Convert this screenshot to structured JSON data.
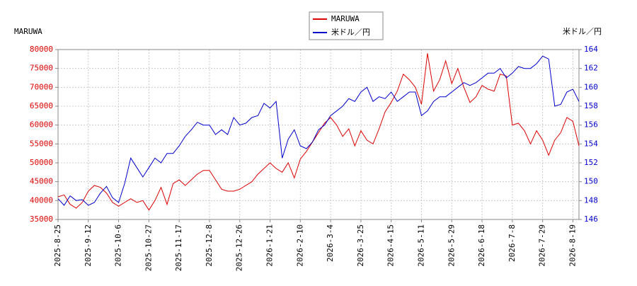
{
  "chart_data": {
    "type": "line",
    "left_label": "MARUWA",
    "right_label": "米ドル／円",
    "x": [
      0,
      3,
      6,
      9,
      12,
      15,
      18,
      21,
      24,
      27,
      30,
      33,
      36,
      39,
      42,
      45,
      48,
      51,
      54,
      57,
      60,
      63,
      66,
      69,
      72,
      75,
      78,
      81,
      84,
      87,
      90,
      93,
      96,
      99,
      102,
      105,
      108,
      111,
      114,
      117,
      120,
      123,
      126,
      129,
      132,
      135,
      138,
      141,
      144,
      147,
      150,
      153,
      156,
      159,
      162,
      165,
      168,
      171,
      174,
      177,
      180,
      183,
      186,
      189,
      192,
      195,
      198,
      201,
      204,
      207,
      210,
      213,
      216,
      219,
      222,
      225,
      228,
      231,
      234,
      237,
      240,
      243,
      246,
      249,
      252,
      255,
      258
    ],
    "series": [
      {
        "name": "MARUWA",
        "color": "#dd0000",
        "axis": "y",
        "values": [
          41000,
          41500,
          39000,
          38000,
          39500,
          42500,
          44000,
          43500,
          42000,
          39500,
          38500,
          39500,
          40500,
          39500,
          40000,
          37500,
          40000,
          43500,
          39000,
          44500,
          45500,
          44000,
          45500,
          47000,
          48000,
          48000,
          45500,
          43000,
          42500,
          42500,
          43000,
          44000,
          45000,
          47000,
          48500,
          50000,
          48500,
          47500,
          50000,
          46000,
          51000,
          53000,
          55500,
          58000,
          60500,
          62000,
          60000,
          57000,
          59000,
          54500,
          58500,
          56000,
          55000,
          59000,
          63500,
          66000,
          69000,
          73500,
          72000,
          70000,
          65500,
          79000,
          69000,
          72000,
          77000,
          71000,
          75000,
          70000,
          66000,
          67500,
          70500,
          69500,
          69000,
          73500,
          73000,
          60000,
          60500,
          58500,
          55000,
          58500,
          56000,
          52000,
          56000,
          58000,
          62000,
          61000,
          54500
        ]
      },
      {
        "name": "米ドル／円",
        "color": "#0000cc",
        "axis": "y2",
        "values": [
          148.2,
          147.5,
          148.5,
          148.0,
          148.1,
          147.5,
          147.8,
          148.8,
          149.5,
          148.3,
          147.8,
          149.8,
          152.5,
          151.5,
          150.5,
          151.5,
          152.5,
          152.0,
          153.0,
          153.0,
          153.8,
          154.8,
          155.5,
          156.3,
          156.0,
          156.0,
          155.0,
          155.5,
          155.0,
          156.8,
          156.0,
          156.2,
          156.8,
          157.0,
          158.3,
          157.8,
          158.5,
          152.5,
          154.5,
          155.5,
          153.8,
          153.5,
          154.2,
          155.5,
          156.0,
          157.0,
          157.5,
          158.0,
          158.8,
          158.5,
          159.5,
          160.0,
          158.5,
          159.0,
          158.8,
          159.5,
          158.5,
          159.0,
          159.5,
          159.5,
          157.0,
          157.5,
          158.5,
          159.0,
          159.0,
          159.5,
          160.0,
          160.5,
          160.2,
          160.5,
          161.0,
          161.5,
          161.5,
          162.0,
          161.0,
          161.5,
          162.2,
          162.0,
          162.0,
          162.5,
          163.3,
          163.0,
          158.0,
          158.2,
          159.5,
          159.8,
          158.5
        ]
      }
    ],
    "xlim": [
      0,
      258
    ],
    "xticks": [
      {
        "value": 0,
        "label": "2025-8-25"
      },
      {
        "value": 15,
        "label": "2025-9-12"
      },
      {
        "value": 30,
        "label": "2025-10-6"
      },
      {
        "value": 45,
        "label": "2025-10-27"
      },
      {
        "value": 60,
        "label": "2025-11-17"
      },
      {
        "value": 75,
        "label": "2025-12-8"
      },
      {
        "value": 90,
        "label": "2025-12-26"
      },
      {
        "value": 105,
        "label": "2026-1-21"
      },
      {
        "value": 120,
        "label": "2026-2-10"
      },
      {
        "value": 135,
        "label": "2026-3-4"
      },
      {
        "value": 150,
        "label": "2026-3-25"
      },
      {
        "value": 165,
        "label": "2026-4-15"
      },
      {
        "value": 180,
        "label": "2026-5-11"
      },
      {
        "value": 195,
        "label": "2026-5-29"
      },
      {
        "value": 210,
        "label": "2026-6-18"
      },
      {
        "value": 225,
        "label": "2026-7-8"
      },
      {
        "value": 240,
        "label": "2026-7-29"
      },
      {
        "value": 255,
        "label": "2026-8-19"
      }
    ],
    "ylim": [
      35000,
      80000
    ],
    "yticks": [
      35000,
      40000,
      45000,
      50000,
      55000,
      60000,
      65000,
      70000,
      75000,
      80000
    ],
    "y2lim": [
      146,
      164
    ],
    "y2ticks": [
      146,
      148,
      150,
      152,
      154,
      156,
      158,
      160,
      162,
      164
    ],
    "grid": true
  }
}
